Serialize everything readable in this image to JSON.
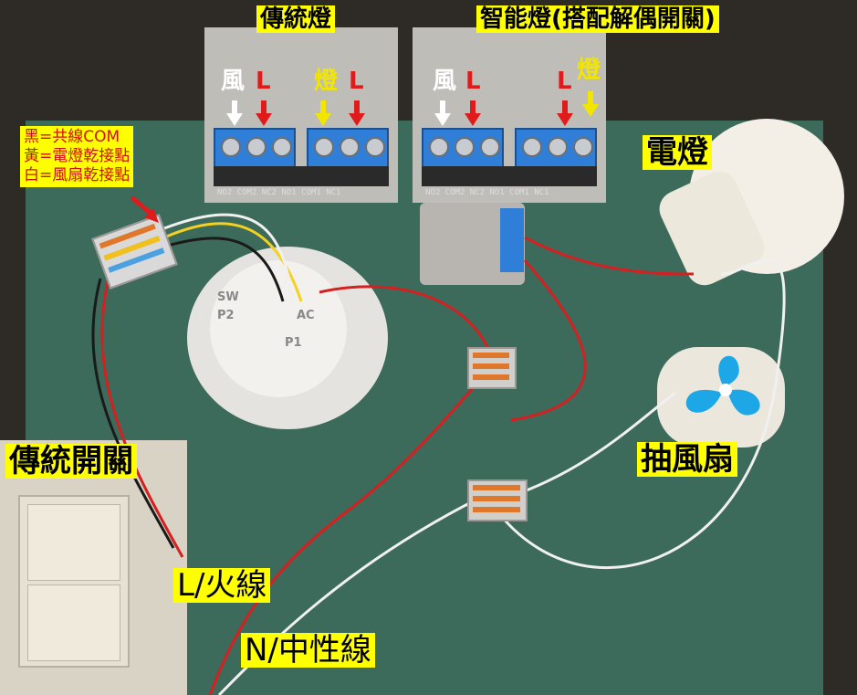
{
  "labels": {
    "traditional_lamp": "傳統燈",
    "smart_lamp": "智能燈(搭配解偶開關)",
    "lamp": "電燈",
    "exhaust_fan": "抽風扇",
    "traditional_switch": "傳統開關",
    "live_wire": "L/火線",
    "neutral_wire": "N/中性線"
  },
  "legend": [
    "黑=共線COM",
    "黃=電燈乾接點",
    "白=風扇乾接點"
  ],
  "panel_traditional": {
    "fan_label": "風",
    "live_label_1": "L",
    "lamp_label": "燈",
    "live_label_2": "L",
    "terminal_text": "NO2 COM2 NC2  NO1 COM1 NC1"
  },
  "panel_smart": {
    "fan_label": "風",
    "live_label_1": "L",
    "live_label_2": "L",
    "lamp_label": "燈",
    "terminal_text": "NO2 COM2 NC2  NO1 COM1 NC1"
  },
  "round_module": {
    "sw": "SW",
    "p2": "P2",
    "ac": "AC",
    "p1": "P1"
  },
  "colors": {
    "highlight": "#ffff00",
    "legend_text": "#d01010",
    "arrow_white": "#ffffff",
    "arrow_red": "#e01b1b",
    "arrow_yellow": "#f2e600",
    "board": "#3c6b5b",
    "fan_icon": "#1ea7e6",
    "wire_red": "#d42020",
    "wire_white": "#f0f0f0",
    "wire_yellow": "#f5d020",
    "wire_black": "#1a1a1a"
  },
  "icons": [
    "fan-icon"
  ]
}
